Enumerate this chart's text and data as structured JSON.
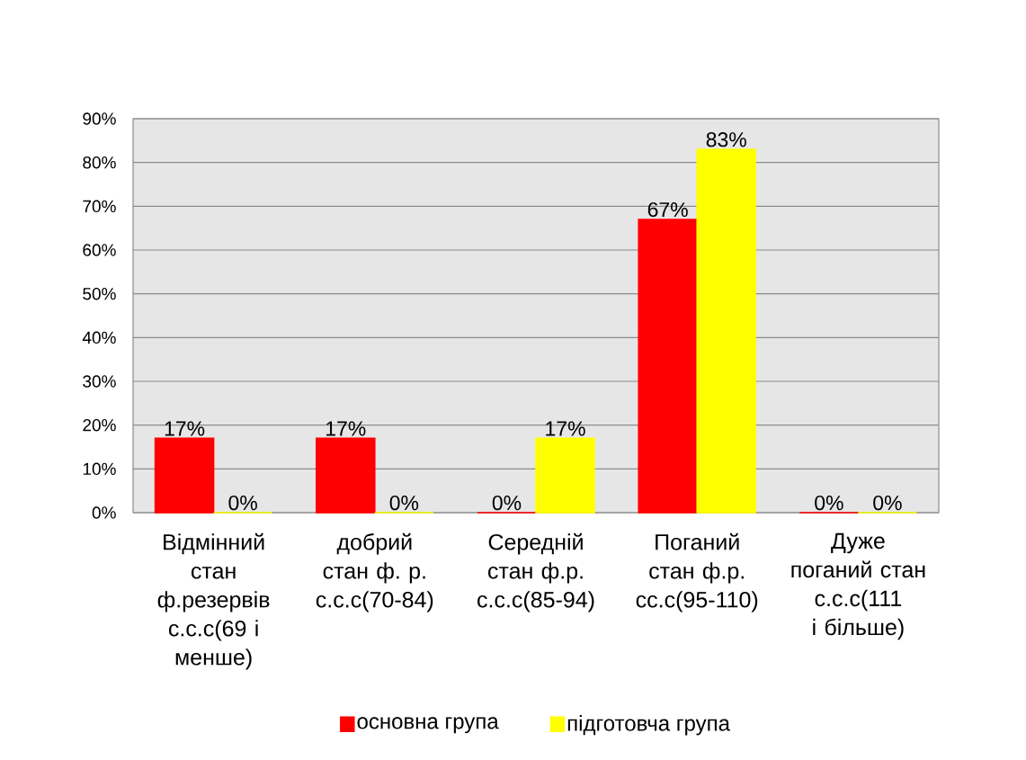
{
  "chart_data": {
    "type": "bar",
    "categories": [
      "Відмінний стан ф.резервів с.с.с(69 і менше)",
      "добрий стан ф. р. с.с.с(70-84)",
      "Середній стан ф.р. с.с.с(85-94)",
      "Поганий стан ф.р. сс.с(95-110)",
      "Дуже поганий стан с.с.с(111 і більше)"
    ],
    "series": [
      {
        "name": "основна група",
        "color": "#ff0000",
        "values": [
          17,
          17,
          0,
          67,
          0
        ],
        "value_labels": [
          "17%",
          "17%",
          "0%",
          "67%",
          "0%"
        ]
      },
      {
        "name": "підготовча група",
        "color": "#ffff00",
        "values": [
          0,
          0,
          17,
          83,
          0
        ],
        "value_labels": [
          "0%",
          "0%",
          "17%",
          "83%",
          "0%"
        ]
      }
    ],
    "ylim": [
      0,
      90
    ],
    "yticks": [
      {
        "value": 0,
        "label": "0%"
      },
      {
        "value": 10,
        "label": "10%"
      },
      {
        "value": 20,
        "label": "20%"
      },
      {
        "value": 30,
        "label": "30%"
      },
      {
        "value": 40,
        "label": "40%"
      },
      {
        "value": 50,
        "label": "50%"
      },
      {
        "value": 60,
        "label": "60%"
      },
      {
        "value": 70,
        "label": "70%"
      },
      {
        "value": 80,
        "label": "80%"
      },
      {
        "value": 90,
        "label": "90%"
      }
    ],
    "grid": "y",
    "legend": "bottom"
  }
}
